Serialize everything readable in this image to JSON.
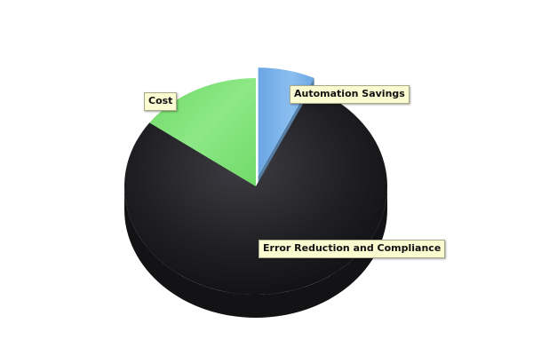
{
  "chart_data": {
    "type": "pie",
    "title": "",
    "slices": [
      {
        "label": "Automation Savings",
        "value": 7,
        "color": "#7ab4ea"
      },
      {
        "label": "Error Reduction and Compliance",
        "value": 78,
        "color": "#232326"
      },
      {
        "label": "Cost",
        "value": 15,
        "color": "#7ee07a"
      }
    ],
    "exploded_slice": "Automation Savings",
    "style": "3d",
    "legend": "none"
  }
}
